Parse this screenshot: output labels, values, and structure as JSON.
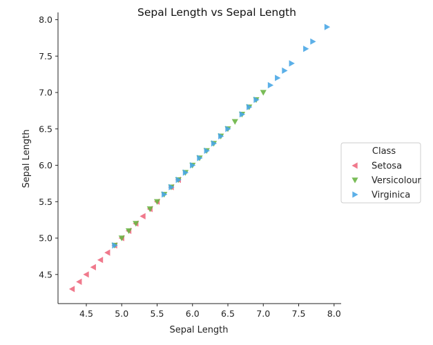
{
  "chart_data": {
    "type": "scatter",
    "title": "Sepal Length vs Sepal Length",
    "xlabel": "Sepal Length",
    "ylabel": "Sepal Length",
    "xlim": [
      4.1,
      8.1
    ],
    "ylim": [
      4.1,
      8.1
    ],
    "xticks": [
      "4.5",
      "5.0",
      "5.5",
      "6.0",
      "6.5",
      "7.0",
      "7.5",
      "8.0"
    ],
    "yticks": [
      "4.5",
      "5.0",
      "5.5",
      "6.0",
      "6.5",
      "7.0",
      "7.5",
      "8.0"
    ],
    "grid": false,
    "legend": {
      "title": "Class",
      "placement": "center-right"
    },
    "series": [
      {
        "name": "Setosa",
        "marker": "triangle-left",
        "color": "#ee6a80",
        "points": [
          [
            4.3,
            4.3
          ],
          [
            4.4,
            4.4
          ],
          [
            4.5,
            4.5
          ],
          [
            4.6,
            4.6
          ],
          [
            4.7,
            4.7
          ],
          [
            4.8,
            4.8
          ],
          [
            4.9,
            4.9
          ],
          [
            5.0,
            5.0
          ],
          [
            5.1,
            5.1
          ],
          [
            5.2,
            5.2
          ],
          [
            5.3,
            5.3
          ],
          [
            5.4,
            5.4
          ],
          [
            5.5,
            5.5
          ],
          [
            5.7,
            5.7
          ],
          [
            5.8,
            5.8
          ]
        ]
      },
      {
        "name": "Versicolour",
        "marker": "triangle-down",
        "color": "#6ab545",
        "points": [
          [
            4.9,
            4.9
          ],
          [
            5.0,
            5.0
          ],
          [
            5.1,
            5.1
          ],
          [
            5.2,
            5.2
          ],
          [
            5.4,
            5.4
          ],
          [
            5.5,
            5.5
          ],
          [
            5.6,
            5.6
          ],
          [
            5.7,
            5.7
          ],
          [
            5.8,
            5.8
          ],
          [
            5.9,
            5.9
          ],
          [
            6.0,
            6.0
          ],
          [
            6.1,
            6.1
          ],
          [
            6.2,
            6.2
          ],
          [
            6.3,
            6.3
          ],
          [
            6.4,
            6.4
          ],
          [
            6.5,
            6.5
          ],
          [
            6.6,
            6.6
          ],
          [
            6.7,
            6.7
          ],
          [
            6.8,
            6.8
          ],
          [
            6.9,
            6.9
          ],
          [
            7.0,
            7.0
          ]
        ]
      },
      {
        "name": "Virginica",
        "marker": "triangle-right",
        "color": "#4aa7e6",
        "points": [
          [
            4.9,
            4.9
          ],
          [
            5.6,
            5.6
          ],
          [
            5.7,
            5.7
          ],
          [
            5.8,
            5.8
          ],
          [
            5.9,
            5.9
          ],
          [
            6.0,
            6.0
          ],
          [
            6.1,
            6.1
          ],
          [
            6.2,
            6.2
          ],
          [
            6.3,
            6.3
          ],
          [
            6.4,
            6.4
          ],
          [
            6.5,
            6.5
          ],
          [
            6.7,
            6.7
          ],
          [
            6.8,
            6.8
          ],
          [
            6.9,
            6.9
          ],
          [
            7.1,
            7.1
          ],
          [
            7.2,
            7.2
          ],
          [
            7.3,
            7.3
          ],
          [
            7.4,
            7.4
          ],
          [
            7.6,
            7.6
          ],
          [
            7.7,
            7.7
          ],
          [
            7.9,
            7.9
          ]
        ]
      }
    ]
  }
}
